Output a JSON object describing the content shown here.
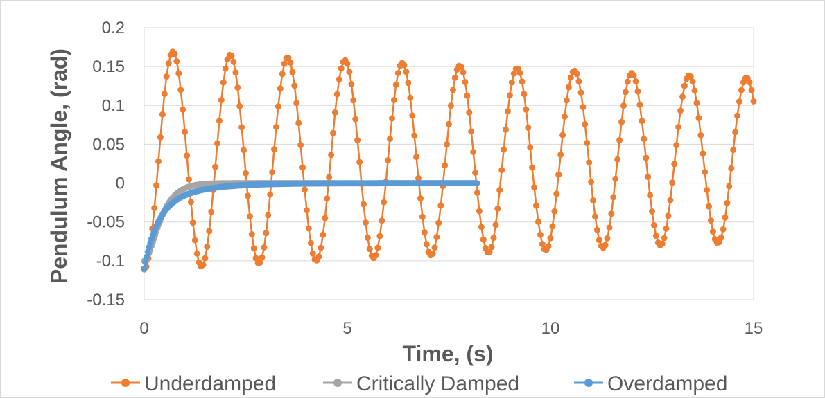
{
  "chart_data": {
    "type": "scatter",
    "xlabel": "Time, (s)",
    "ylabel": "Pendulum Angle, (rad)",
    "xlim": [
      0,
      15
    ],
    "ylim": [
      -0.15,
      0.2
    ],
    "xticks": [
      0,
      5,
      10,
      15
    ],
    "yticks": [
      -0.15,
      -0.1,
      -0.05,
      0,
      0.05,
      0.1,
      0.15,
      0.2
    ],
    "grid": "horizontal",
    "legend": "bottom",
    "series": [
      {
        "name": "Underdamped",
        "color": "#ED7D31",
        "model": {
          "offset": 0.03,
          "amplitude": 0.141,
          "decay": 0.0195,
          "period": 1.412,
          "phase": 3.14159,
          "t_start": 0,
          "t_end": 15,
          "step": 0.05
        }
      },
      {
        "name": "Critically Damped",
        "color": "#A5A5A5",
        "model": {
          "offset": 0,
          "amplitude": -0.1,
          "rate": 4.4,
          "t_start": 0,
          "t_end": 4.7,
          "step": 0.03
        }
      },
      {
        "name": "Overdamped",
        "color": "#5B9BD5",
        "model": {
          "offset": 0,
          "amplitude": -0.11,
          "fast_fraction": 0.65,
          "fast_rate": 3.2,
          "slow_rate": 1.1,
          "t_start": 0,
          "t_end": 8.2,
          "step": 0.03
        }
      }
    ]
  }
}
